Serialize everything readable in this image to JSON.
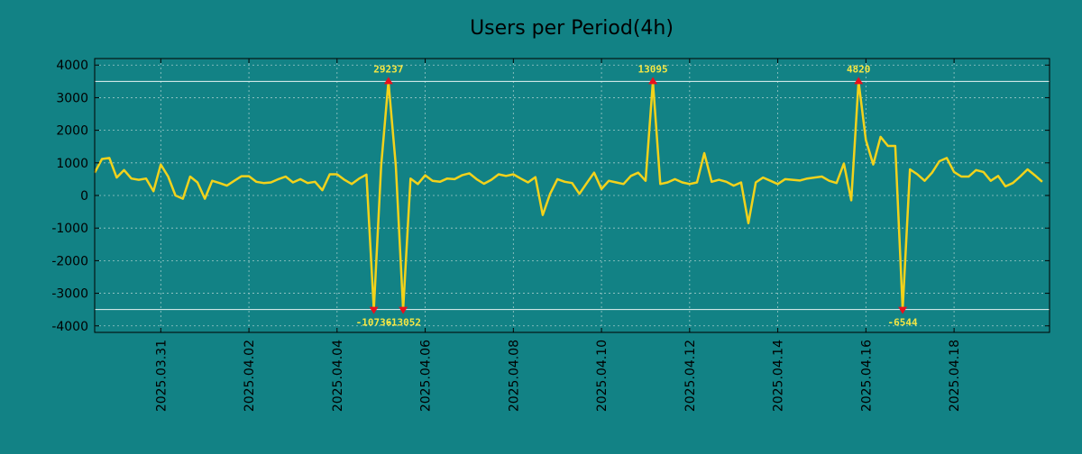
{
  "chart_data": {
    "type": "line",
    "title": "Users per Period(4h)",
    "xlabel": "",
    "ylabel": "",
    "ylim": [
      -4200,
      4200
    ],
    "yticks": [
      4000,
      3000,
      2000,
      1000,
      0,
      -1000,
      -2000,
      -3000,
      -4000
    ],
    "xlim": [
      0,
      130
    ],
    "xticks": [
      {
        "label": "2025.03.31",
        "x": 9
      },
      {
        "label": "2025.04.02",
        "x": 21
      },
      {
        "label": "2025.04.04",
        "x": 33
      },
      {
        "label": "2025.04.06",
        "x": 45
      },
      {
        "label": "2025.04.08",
        "x": 57
      },
      {
        "label": "2025.04.10",
        "x": 69
      },
      {
        "label": "2025.04.12",
        "x": 81
      },
      {
        "label": "2025.04.14",
        "x": 93
      },
      {
        "label": "2025.04.16",
        "x": 105
      },
      {
        "label": "2025.04.18",
        "x": 117
      }
    ],
    "clip_lines": [
      3500,
      -3500
    ],
    "series": [
      {
        "name": "Users",
        "color": "#f2d21b",
        "values": [
          700,
          1120,
          1150,
          550,
          780,
          520,
          480,
          520,
          130,
          950,
          580,
          0,
          -100,
          580,
          400,
          -100,
          450,
          380,
          300,
          450,
          590,
          590,
          420,
          380,
          400,
          500,
          580,
          400,
          500,
          380,
          420,
          160,
          650,
          650,
          480,
          350,
          520,
          640,
          -3500,
          900,
          3500,
          900,
          -3500,
          520,
          350,
          620,
          450,
          420,
          520,
          500,
          620,
          680,
          500,
          360,
          480,
          650,
          600,
          650,
          520,
          400,
          560,
          -600,
          50,
          500,
          420,
          380,
          50,
          380,
          700,
          200,
          450,
          400,
          350,
          600,
          700,
          450,
          3500,
          350,
          400,
          500,
          400,
          350,
          400,
          1300,
          420,
          480,
          420,
          300,
          400,
          -850,
          400,
          550,
          450,
          350,
          500,
          480,
          460,
          520,
          550,
          580,
          450,
          380,
          980,
          -150,
          3500,
          1700,
          950,
          1800,
          1520,
          1520,
          -3500,
          800,
          650,
          450,
          700,
          1050,
          1150,
          720,
          580,
          580,
          780,
          720,
          450,
          600,
          280,
          380,
          580,
          800,
          620,
          420
        ]
      }
    ],
    "annotations": [
      {
        "label": "29237",
        "x": 40,
        "y": 3500,
        "position": "above"
      },
      {
        "label": "-10736",
        "x": 38,
        "y": -3500,
        "position": "below"
      },
      {
        "label": "-13052",
        "x": 42,
        "y": -3500,
        "position": "below"
      },
      {
        "label": "13095",
        "x": 76,
        "y": 3500,
        "position": "above"
      },
      {
        "label": "4820",
        "x": 104,
        "y": 3500,
        "position": "above"
      },
      {
        "label": "-6544",
        "x": 110,
        "y": -3500,
        "position": "below"
      }
    ]
  }
}
